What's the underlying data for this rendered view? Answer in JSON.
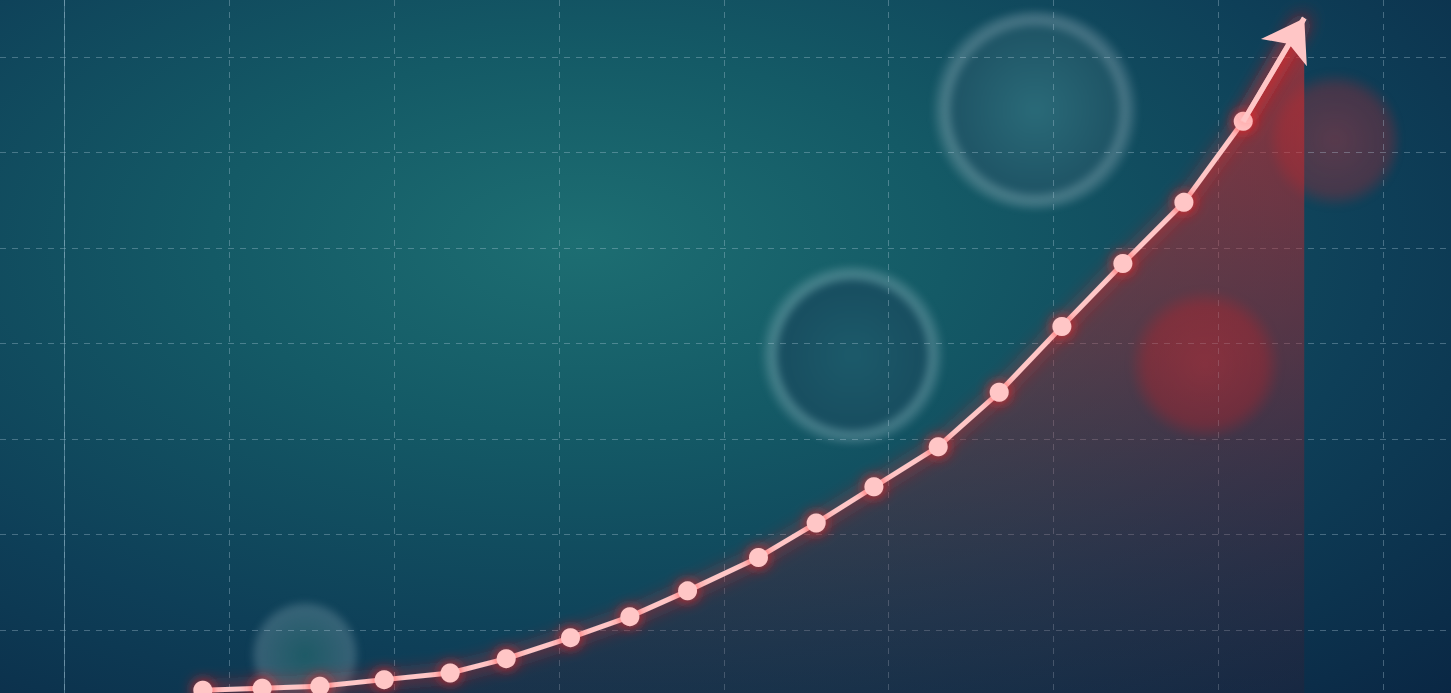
{
  "chart_data": {
    "type": "line",
    "x": [
      0.84,
      1.2,
      1.55,
      1.94,
      2.34,
      2.68,
      3.07,
      3.43,
      3.78,
      4.21,
      4.56,
      4.91,
      5.3,
      5.67,
      6.05,
      6.42,
      6.79,
      7.15,
      7.52
    ],
    "values": [
      0.37,
      0.39,
      0.41,
      0.48,
      0.55,
      0.7,
      0.92,
      1.14,
      1.41,
      1.76,
      2.12,
      2.5,
      2.92,
      3.49,
      4.18,
      4.84,
      5.48,
      6.33,
      7.41
    ],
    "color": "#ffc6c6",
    "marker": "circle",
    "xlim": [
      -0.39,
      8.41
    ],
    "ylim": [
      0.34,
      7.6
    ],
    "xticks": [
      0,
      1,
      2,
      3,
      4,
      5,
      6,
      7,
      8
    ],
    "yticks": [
      1,
      2,
      3,
      4,
      5,
      6,
      7
    ],
    "grid": true,
    "tick_labels": false
  }
}
